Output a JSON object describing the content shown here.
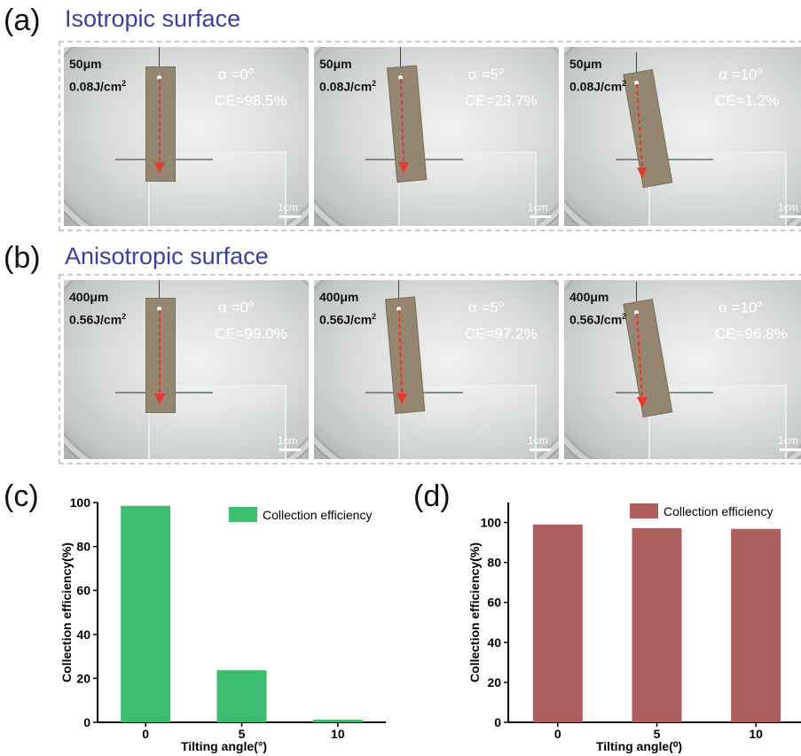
{
  "panels": {
    "a": {
      "letter": "(a)",
      "title": "Isotropic surface",
      "photos": [
        {
          "thickness": "50μm",
          "fluence_value": "0.08J/cm",
          "fluence_exp": "2",
          "angle_label": "α =0",
          "angle_sup": "o",
          "ce": "CE=98.5%",
          "scale": "1cm"
        },
        {
          "thickness": "50μm",
          "fluence_value": "0.08J/cm",
          "fluence_exp": "2",
          "angle_label": "α =5",
          "angle_sup": "o",
          "ce": "CE=23.7%",
          "scale": "1cm"
        },
        {
          "thickness": "50μm",
          "fluence_value": "0.08J/cm",
          "fluence_exp": "2",
          "angle_label": "α =10",
          "angle_sup": "o",
          "ce": "CE=1.2%",
          "scale": "1cm"
        }
      ]
    },
    "b": {
      "letter": "(b)",
      "title": "Anisotropic surface",
      "photos": [
        {
          "thickness": "400μm",
          "fluence_value": "0.56J/cm",
          "fluence_exp": "2",
          "angle_label": "α =0",
          "angle_sup": "o",
          "ce": "CE=99.0%",
          "scale": "1cm"
        },
        {
          "thickness": "400μm",
          "fluence_value": "0.56J/cm",
          "fluence_exp": "2",
          "angle_label": "α =5",
          "angle_sup": "o",
          "ce": "CE=97.2%",
          "scale": "1cm"
        },
        {
          "thickness": "400μm",
          "fluence_value": "0.56J/cm",
          "fluence_exp": "2",
          "angle_label": "α =10",
          "angle_sup": "o",
          "ce": "CE=96.8%",
          "scale": "1cm"
        }
      ]
    },
    "c": {
      "letter": "(c)"
    },
    "d": {
      "letter": "(d)"
    }
  },
  "colors": {
    "title": "#3b3fa0",
    "bar_c": "#3dbd6f",
    "bar_d": "#b05f5f",
    "arrow": "#e8382e"
  },
  "chart_data": [
    {
      "type": "bar",
      "panel": "c",
      "categories": [
        "0",
        "5",
        "10"
      ],
      "series": [
        {
          "name": "Collection efficiency",
          "values": [
            98.5,
            23.7,
            1.2
          ]
        }
      ],
      "xlabel": "Tilting angle(°)",
      "ylabel": "Collection efficiency(%)",
      "ylim": [
        0,
        100
      ],
      "yticks": [
        "0",
        "20",
        "40",
        "60",
        "80",
        "100"
      ],
      "legend": "top-right",
      "grid": false
    },
    {
      "type": "bar",
      "panel": "d",
      "categories": [
        "0",
        "5",
        "10"
      ],
      "series": [
        {
          "name": "Collection efficiency",
          "values": [
            99.0,
            97.2,
            96.8
          ]
        }
      ],
      "xlabel": "Tilting angle(⁰)",
      "ylabel": "Collection efficiency(%)",
      "ylim": [
        0,
        110
      ],
      "yticks": [
        "0",
        "20",
        "40",
        "60",
        "80",
        "100"
      ],
      "legend": "top",
      "grid": false
    }
  ]
}
